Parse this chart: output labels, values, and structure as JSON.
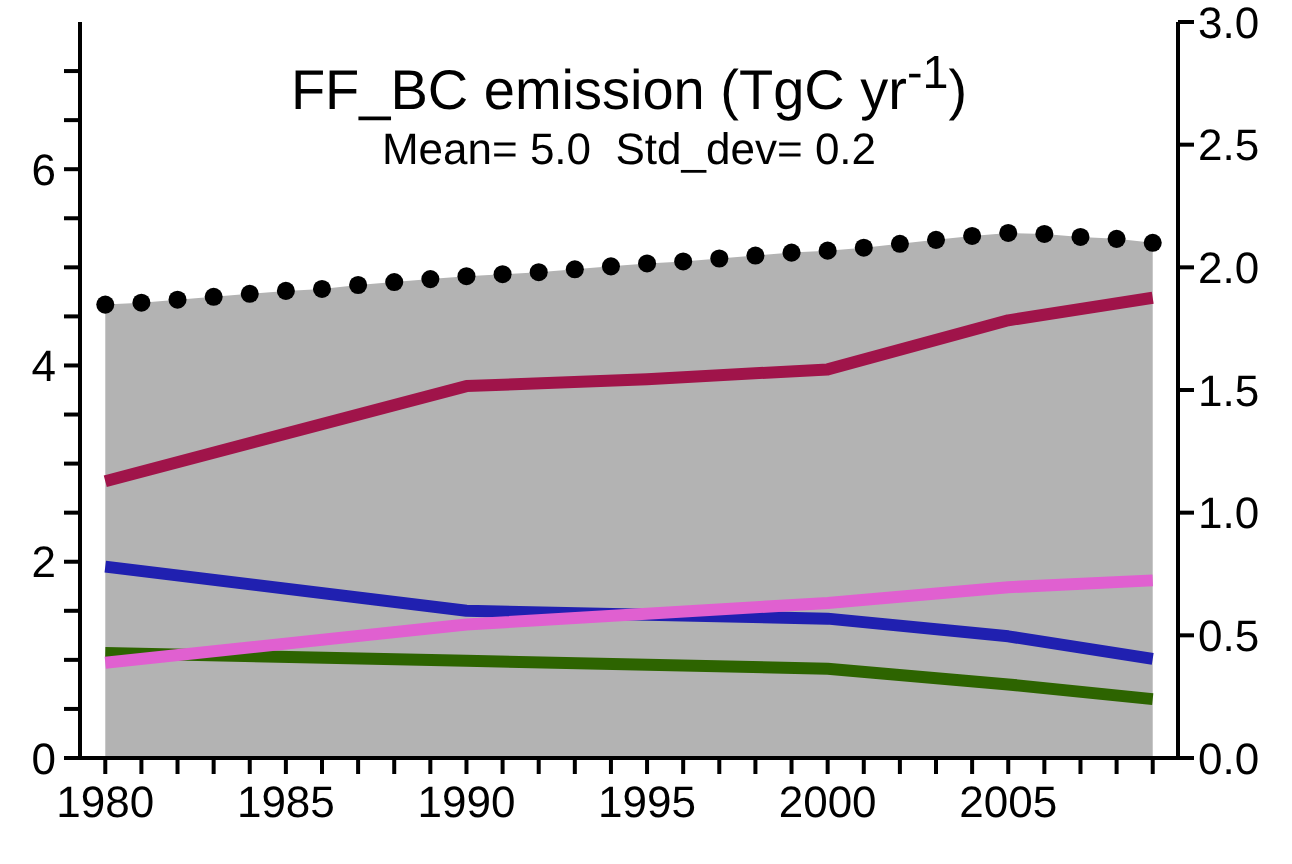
{
  "chart_data": {
    "type": "line",
    "title": "FF_BC emission (TgC yr$^{-1}$)",
    "subtitle": "Mean= 5.0  Std_dev= 0.2",
    "x": [
      1980,
      1981,
      1982,
      1983,
      1984,
      1985,
      1986,
      1987,
      1988,
      1989,
      1990,
      1991,
      1992,
      1993,
      1994,
      1995,
      1996,
      1997,
      1998,
      1999,
      2000,
      2001,
      2002,
      2003,
      2004,
      2005,
      2006,
      2007,
      2008,
      2009
    ],
    "xlim": [
      1979.3,
      2009.7
    ],
    "xticks": [
      1980,
      {
        "value": 1981,
        "label": null
      },
      {
        "value": 1982,
        "label": null
      },
      {
        "value": 1983,
        "label": null
      },
      {
        "value": 1984,
        "label": null
      },
      1985,
      {
        "value": 1986,
        "label": null
      },
      {
        "value": 1987,
        "label": null
      },
      {
        "value": 1988,
        "label": null
      },
      {
        "value": 1989,
        "label": null
      },
      1990,
      {
        "value": 1991,
        "label": null
      },
      {
        "value": 1992,
        "label": null
      },
      {
        "value": 1993,
        "label": null
      },
      {
        "value": 1994,
        "label": null
      },
      1995,
      {
        "value": 1996,
        "label": null
      },
      {
        "value": 1997,
        "label": null
      },
      {
        "value": 1998,
        "label": null
      },
      {
        "value": 1999,
        "label": null
      },
      2000,
      {
        "value": 2001,
        "label": null
      },
      {
        "value": 2002,
        "label": null
      },
      {
        "value": 2003,
        "label": null
      },
      {
        "value": 2004,
        "label": null
      },
      2005,
      {
        "value": 2006,
        "label": null
      },
      {
        "value": 2007,
        "label": null
      },
      {
        "value": 2008,
        "label": null
      },
      {
        "value": 2009,
        "label": null
      }
    ],
    "ylim": [
      0,
      7.5
    ],
    "yticks": [
      0,
      {
        "value": 0.5,
        "label": null
      },
      {
        "value": 1,
        "label": null
      },
      {
        "value": 1.5,
        "label": null
      },
      2,
      {
        "value": 2.5,
        "label": null
      },
      {
        "value": 3,
        "label": null
      },
      {
        "value": 3.5,
        "label": null
      },
      4,
      {
        "value": 4.5,
        "label": null
      },
      {
        "value": 5,
        "label": null
      },
      {
        "value": 5.5,
        "label": null
      },
      6,
      {
        "value": 6.5,
        "label": null
      },
      {
        "value": 7,
        "label": null
      }
    ],
    "y2lim": [
      0,
      3
    ],
    "y2ticks": [
      {
        "value": 0,
        "label": "0.0"
      },
      {
        "value": 0.5,
        "label": "0.5"
      },
      {
        "value": 1,
        "label": "1.0"
      },
      {
        "value": 1.5,
        "label": "1.5"
      },
      {
        "value": 2,
        "label": "2.0"
      },
      {
        "value": 2.5,
        "label": "2.5"
      },
      {
        "value": 3,
        "label": "3.0"
      }
    ],
    "grid": false,
    "series": [
      {
        "type": "area",
        "color": "#b3b3b3",
        "values": [
          4.62,
          4.64,
          4.67,
          4.7,
          4.73,
          4.76,
          4.78,
          4.82,
          4.85,
          4.88,
          4.91,
          4.93,
          4.95,
          4.98,
          5.01,
          5.04,
          5.06,
          5.09,
          5.12,
          5.15,
          5.17,
          5.2,
          5.24,
          5.28,
          5.32,
          5.35,
          5.34,
          5.31,
          5.29,
          5.25
        ]
      },
      {
        "type": "scatter",
        "color": "#000000",
        "marker": "circle",
        "values": [
          4.62,
          4.64,
          4.67,
          4.7,
          4.73,
          4.76,
          4.78,
          4.82,
          4.85,
          4.88,
          4.91,
          4.93,
          4.95,
          4.98,
          5.01,
          5.04,
          5.06,
          5.09,
          5.12,
          5.15,
          5.17,
          5.2,
          5.24,
          5.28,
          5.32,
          5.35,
          5.34,
          5.31,
          5.29,
          5.25
        ]
      },
      {
        "color": "#a0144a",
        "x": [
          1980,
          1990,
          1995,
          2000,
          2005,
          2009
        ],
        "values": [
          2.82,
          3.79,
          3.86,
          3.96,
          4.46,
          4.69
        ]
      },
      {
        "color": "#2020b0",
        "x": [
          1980,
          1990,
          2000,
          2005,
          2009
        ],
        "values": [
          1.95,
          1.5,
          1.42,
          1.24,
          1.01
        ]
      },
      {
        "color": "#2d6400",
        "x": [
          1980,
          1990,
          2000,
          2005,
          2009
        ],
        "values": [
          1.07,
          0.99,
          0.91,
          0.75,
          0.6
        ]
      },
      {
        "color": "#e060d0",
        "x": [
          1980,
          1990,
          2000,
          2005,
          2009
        ],
        "values": [
          0.97,
          1.36,
          1.58,
          1.74,
          1.81
        ]
      }
    ]
  }
}
